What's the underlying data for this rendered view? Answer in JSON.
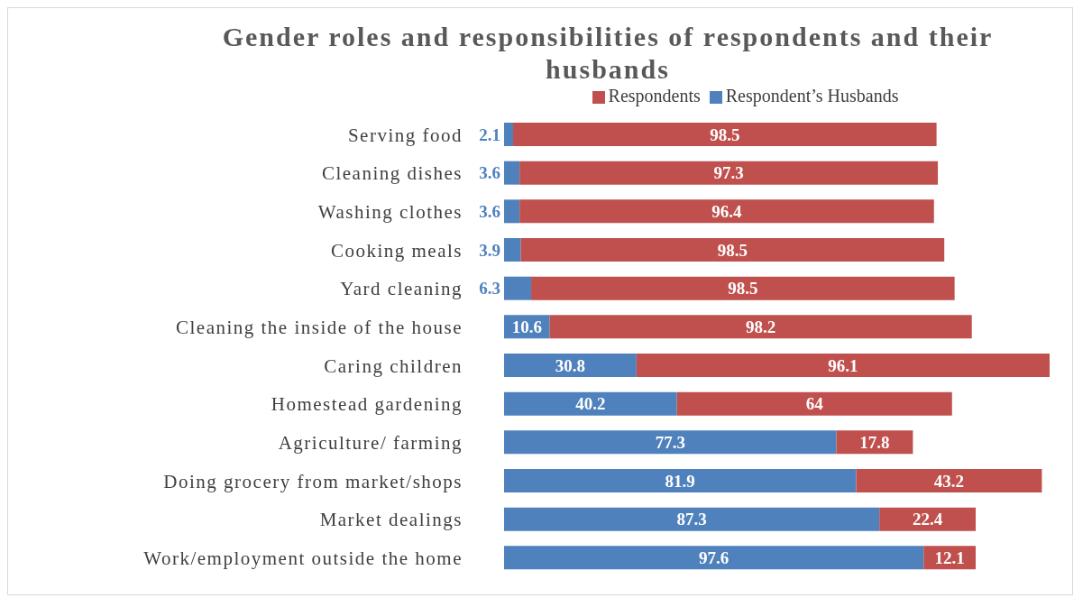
{
  "chart_data": {
    "type": "bar",
    "orientation": "horizontal",
    "stacked": true,
    "data_labels": true,
    "grid": false,
    "legend": "top",
    "title": "Gender roles and responsibilities  of respondents and their husbands",
    "categories": [
      "Serving food",
      "Cleaning dishes",
      "Washing clothes",
      "Cooking meals",
      "Yard cleaning",
      "Cleaning the inside of the house",
      "Caring children",
      "Homestead gardening",
      "Agriculture/ farming",
      "Doing grocery from market/shops",
      "Market dealings",
      "Work/employment outside the home"
    ],
    "series": [
      {
        "name": "Respondent’s Husbands",
        "color": "#4f81bd",
        "values": [
          2.1,
          3.6,
          3.6,
          3.9,
          6.3,
          10.6,
          30.8,
          40.2,
          77.3,
          81.9,
          87.3,
          97.6
        ]
      },
      {
        "name": "Respondents",
        "color": "#c0504d",
        "values": [
          98.5,
          97.3,
          96.4,
          98.5,
          98.5,
          98.2,
          96.1,
          64,
          17.8,
          43.2,
          22.4,
          12.1
        ]
      }
    ]
  }
}
